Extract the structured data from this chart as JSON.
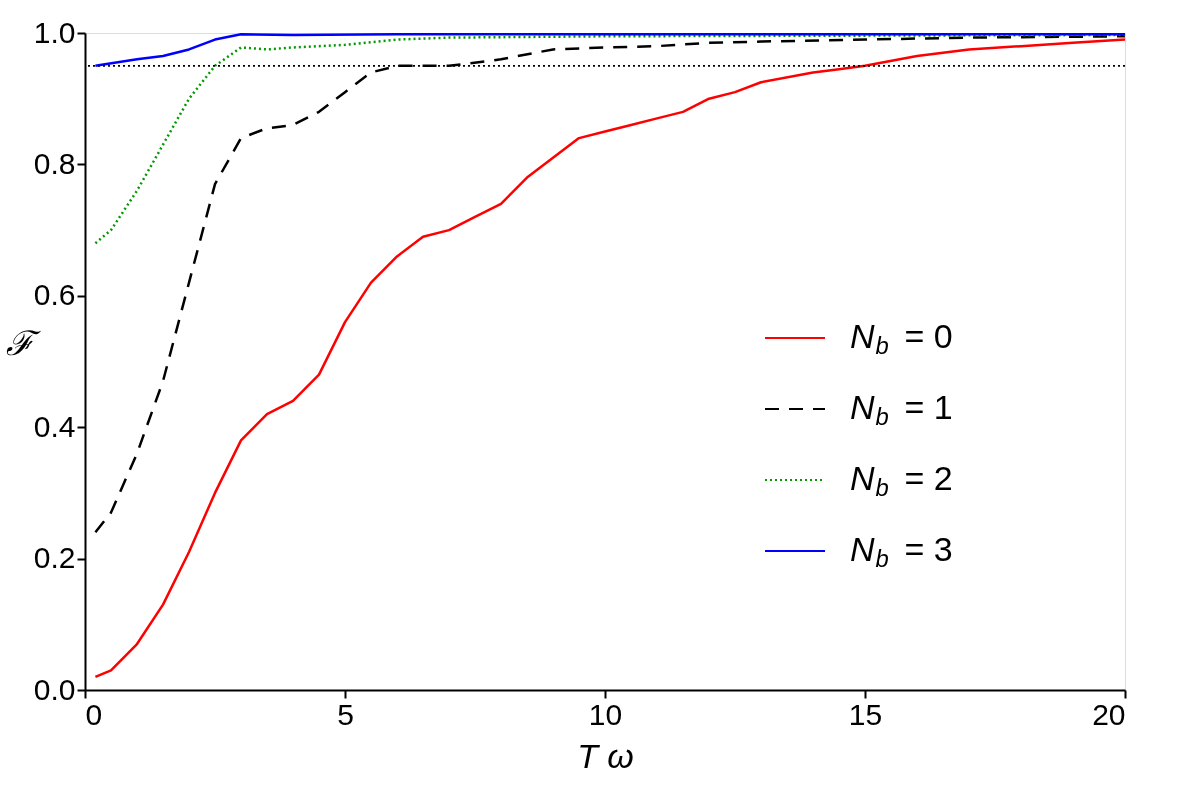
{
  "chart_data": {
    "type": "line",
    "xlabel": "T ω",
    "ylabel": "ℱ",
    "xlim": [
      0,
      20
    ],
    "ylim": [
      0,
      1.0
    ],
    "xticks": [
      0,
      5,
      10,
      15,
      20
    ],
    "yticks": [
      {
        "value": 0,
        "label": "0.0"
      },
      0.2,
      0.4,
      0.6,
      0.8,
      {
        "value": 1,
        "label": "1.0"
      }
    ],
    "grid": false,
    "legend": "right",
    "marker": "none",
    "ref_lines": [
      {
        "axis": "y",
        "value": 0.95,
        "label": null,
        "color": "#000000",
        "line_style": "dotted"
      }
    ],
    "series": [
      {
        "name": "N$_{b}$ = 0",
        "color": "#ff0000",
        "line_style": "solid",
        "x": [
          0.2,
          0.5,
          1,
          1.5,
          2,
          2.5,
          3,
          3.5,
          4,
          4.5,
          5,
          5.5,
          6,
          6.5,
          7,
          7.5,
          8,
          8.5,
          9,
          9.5,
          10,
          10.5,
          11,
          11.5,
          12,
          12.5,
          13,
          14,
          14.5,
          15,
          16,
          17,
          18,
          19,
          20
        ],
        "values": [
          0.02,
          0.03,
          0.07,
          0.13,
          0.21,
          0.3,
          0.38,
          0.42,
          0.44,
          0.48,
          0.56,
          0.62,
          0.66,
          0.69,
          0.7,
          0.72,
          0.74,
          0.78,
          0.81,
          0.84,
          0.85,
          0.86,
          0.87,
          0.88,
          0.9,
          0.91,
          0.925,
          0.94,
          0.945,
          0.95,
          0.965,
          0.975,
          0.98,
          0.985,
          0.99
        ]
      },
      {
        "name": "N$_{b}$ = 1",
        "color": "#000000",
        "line_style": "dashed",
        "x": [
          0.2,
          0.5,
          1,
          1.5,
          2,
          2.5,
          3,
          3.5,
          4,
          4.5,
          5,
          5.5,
          6,
          7,
          8,
          9,
          10,
          11,
          12,
          13,
          15,
          17,
          20
        ],
        "values": [
          0.24,
          0.27,
          0.36,
          0.47,
          0.62,
          0.77,
          0.84,
          0.855,
          0.86,
          0.88,
          0.91,
          0.94,
          0.95,
          0.95,
          0.96,
          0.975,
          0.978,
          0.98,
          0.985,
          0.987,
          0.99,
          0.993,
          0.995
        ]
      },
      {
        "name": "N$_{b}$ = 2",
        "color": "#009900",
        "line_style": "dotted",
        "x": [
          0.2,
          0.5,
          1,
          1.5,
          2,
          2.5,
          3,
          3.5,
          4,
          5,
          6,
          7,
          10,
          20
        ],
        "values": [
          0.68,
          0.7,
          0.76,
          0.83,
          0.9,
          0.95,
          0.978,
          0.975,
          0.978,
          0.982,
          0.99,
          0.993,
          0.995,
          0.997
        ]
      },
      {
        "name": "N$_{b}$ = 3",
        "color": "#0000ff",
        "line_style": "solid",
        "x": [
          0.2,
          1,
          1.5,
          2,
          2.5,
          3,
          4,
          6,
          20
        ],
        "values": [
          0.95,
          0.96,
          0.965,
          0.975,
          0.99,
          0.998,
          0.997,
          0.998,
          0.998
        ]
      }
    ]
  }
}
